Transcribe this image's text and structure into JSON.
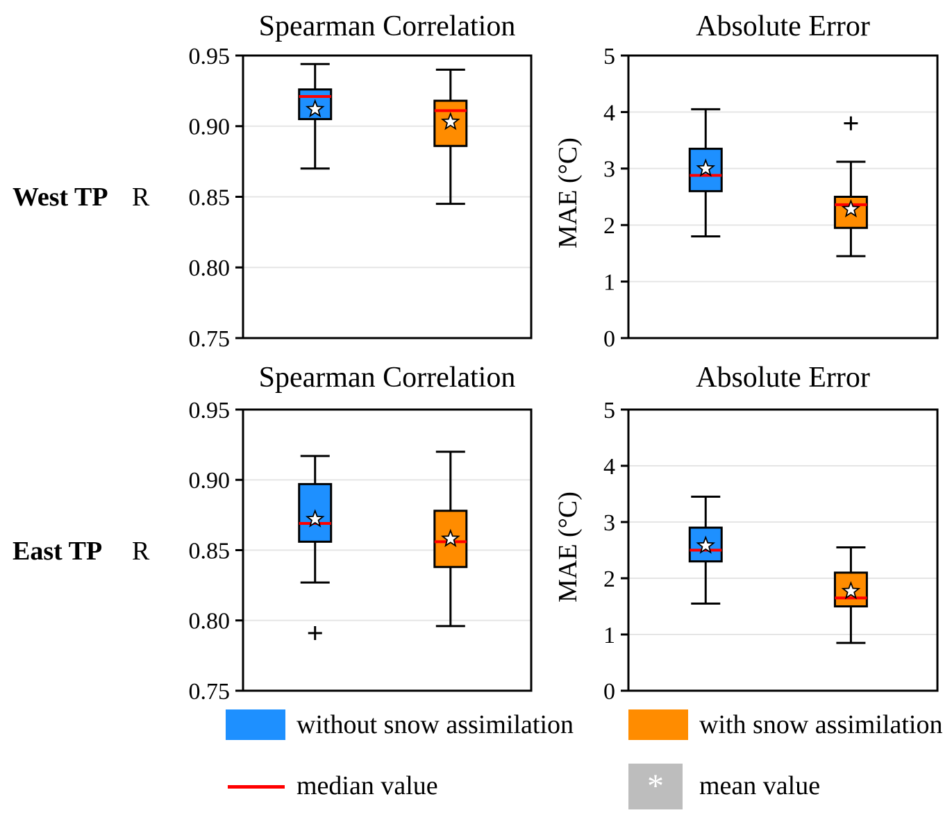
{
  "figure": {
    "rows": [
      "West TP",
      "East TP"
    ],
    "columns": [
      "Spearman Correlation",
      "Absolute Error"
    ]
  },
  "chart_data": [
    {
      "type": "boxplot",
      "panel": "west-correlation",
      "title": "Spearman Correlation",
      "row_label": "West TP",
      "ylabel": "R",
      "ylim": [
        0.75,
        0.95
      ],
      "yticks": [
        0.75,
        0.8,
        0.85,
        0.9,
        0.95
      ],
      "ytick_labels": [
        "0.75",
        "0.80",
        "0.85",
        "0.90",
        "0.95"
      ],
      "grid": true,
      "series": [
        {
          "name": "without snow assimilation",
          "color": "#1E90FF",
          "whisker_low": 0.87,
          "q1": 0.905,
          "median": 0.921,
          "q3": 0.926,
          "whisker_high": 0.944,
          "mean": 0.912,
          "outliers": []
        },
        {
          "name": "with snow assimilation",
          "color": "#FF8C00",
          "whisker_low": 0.845,
          "q1": 0.886,
          "median": 0.911,
          "q3": 0.918,
          "whisker_high": 0.94,
          "mean": 0.903,
          "outliers": []
        }
      ]
    },
    {
      "type": "boxplot",
      "panel": "west-mae",
      "title": "Absolute Error",
      "row_label": "West TP",
      "ylabel": "MAE (°C)",
      "ylim": [
        0,
        5
      ],
      "yticks": [
        0,
        1,
        2,
        3,
        4,
        5
      ],
      "ytick_labels": [
        "0",
        "1",
        "2",
        "3",
        "4",
        "5"
      ],
      "grid": true,
      "series": [
        {
          "name": "without snow assimilation",
          "color": "#1E90FF",
          "whisker_low": 1.8,
          "q1": 2.6,
          "median": 2.88,
          "q3": 3.35,
          "whisker_high": 4.05,
          "mean": 3.0,
          "outliers": []
        },
        {
          "name": "with snow assimilation",
          "color": "#FF8C00",
          "whisker_low": 1.45,
          "q1": 1.95,
          "median": 2.36,
          "q3": 2.5,
          "whisker_high": 3.12,
          "mean": 2.28,
          "outliers": [
            3.8
          ]
        }
      ]
    },
    {
      "type": "boxplot",
      "panel": "east-correlation",
      "title": "Spearman Correlation",
      "row_label": "East TP",
      "ylabel": "R",
      "ylim": [
        0.75,
        0.95
      ],
      "yticks": [
        0.75,
        0.8,
        0.85,
        0.9,
        0.95
      ],
      "ytick_labels": [
        "0.75",
        "0.80",
        "0.85",
        "0.90",
        "0.95"
      ],
      "grid": true,
      "series": [
        {
          "name": "without snow assimilation",
          "color": "#1E90FF",
          "whisker_low": 0.827,
          "q1": 0.856,
          "median": 0.869,
          "q3": 0.897,
          "whisker_high": 0.917,
          "mean": 0.872,
          "outliers": [
            0.791
          ]
        },
        {
          "name": "with snow assimilation",
          "color": "#FF8C00",
          "whisker_low": 0.796,
          "q1": 0.838,
          "median": 0.856,
          "q3": 0.878,
          "whisker_high": 0.92,
          "mean": 0.858,
          "outliers": []
        }
      ]
    },
    {
      "type": "boxplot",
      "panel": "east-mae",
      "title": "Absolute Error",
      "row_label": "East TP",
      "ylabel": "MAE (°C)",
      "ylim": [
        0,
        5
      ],
      "yticks": [
        0,
        1,
        2,
        3,
        4,
        5
      ],
      "ytick_labels": [
        "0",
        "1",
        "2",
        "3",
        "4",
        "5"
      ],
      "grid": true,
      "series": [
        {
          "name": "without snow assimilation",
          "color": "#1E90FF",
          "whisker_low": 1.55,
          "q1": 2.3,
          "median": 2.5,
          "q3": 2.9,
          "whisker_high": 3.45,
          "mean": 2.58,
          "outliers": []
        },
        {
          "name": "with snow assimilation",
          "color": "#FF8C00",
          "whisker_low": 0.85,
          "q1": 1.5,
          "median": 1.65,
          "q3": 2.1,
          "whisker_high": 2.55,
          "mean": 1.77,
          "outliers": []
        }
      ]
    }
  ],
  "legend": {
    "without": {
      "label": "without snow assimilation",
      "color": "#1E90FF"
    },
    "with": {
      "label": "with snow assimilation",
      "color": "#FF8C00"
    },
    "median": {
      "label": "median value",
      "color": "#FF0000"
    },
    "mean": {
      "label": "mean value",
      "swatch_color": "#BDBDBD",
      "symbol": "*",
      "symbol_color": "#FFFFFF"
    }
  },
  "style_colors": {
    "axis": "#000000",
    "gridline": "#E5E5E5",
    "mean_star_fill": "#FFFFFF",
    "mean_star_edge": "#000000"
  }
}
